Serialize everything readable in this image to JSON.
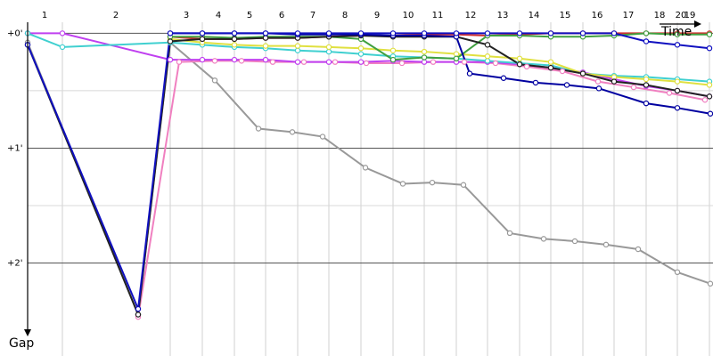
{
  "chart_data": {
    "type": "line",
    "x_label": "Time",
    "y_label": "Gap",
    "xlim": [
      0,
      769
    ],
    "ylim": [
      -0.29,
      2.81
    ],
    "y_inverted": true,
    "xticks": [
      {
        "value": 19,
        "label": "1"
      },
      {
        "value": 99,
        "label": "2"
      },
      {
        "value": 178,
        "label": "3"
      },
      {
        "value": 214,
        "label": "4"
      },
      {
        "value": 249,
        "label": "5"
      },
      {
        "value": 285,
        "label": "6"
      },
      {
        "value": 320,
        "label": "7"
      },
      {
        "value": 356,
        "label": "8"
      },
      {
        "value": 392,
        "label": "9"
      },
      {
        "value": 427,
        "label": "10"
      },
      {
        "value": 460,
        "label": "11"
      },
      {
        "value": 497,
        "label": "12"
      },
      {
        "value": 533,
        "label": "13"
      },
      {
        "value": 568,
        "label": "14"
      },
      {
        "value": 603,
        "label": "15"
      },
      {
        "value": 639,
        "label": "16"
      },
      {
        "value": 674,
        "label": "17"
      },
      {
        "value": 709,
        "label": "18"
      },
      {
        "value": 733,
        "label": "20"
      },
      {
        "value": 743,
        "label": "19"
      }
    ],
    "xgrid": [
      39,
      160,
      196,
      232,
      267,
      303,
      338,
      374,
      410,
      445,
      481,
      516,
      552,
      587,
      623,
      658,
      694,
      729,
      765
    ],
    "yticks": [
      {
        "value": 0,
        "label": "+0'"
      },
      {
        "value": 1,
        "label": "+1'"
      },
      {
        "value": 2,
        "label": "+2'"
      }
    ],
    "ygrid": [
      0.5,
      1.5
    ],
    "series": [
      {
        "color": "#999999",
        "x": [
          0,
          124,
          160,
          210,
          259,
          297,
          331,
          379,
          421,
          454,
          489,
          541,
          579,
          614,
          649,
          685,
          729,
          766
        ],
        "values": [
          0.08,
          2.45,
          0.08,
          0.41,
          0.83,
          0.86,
          0.9,
          1.17,
          1.31,
          1.3,
          1.32,
          1.74,
          1.79,
          1.81,
          1.84,
          1.88,
          2.08,
          2.18
        ]
      },
      {
        "color": "#f080c0",
        "x": [
          124,
          170,
          210,
          240,
          275,
          310,
          345,
          380,
          420,
          455,
          490,
          525,
          560,
          600,
          640,
          680,
          720,
          760
        ],
        "values": [
          2.47,
          0.25,
          0.24,
          0.24,
          0.25,
          0.25,
          0.25,
          0.26,
          0.26,
          0.25,
          0.25,
          0.26,
          0.29,
          0.33,
          0.42,
          0.47,
          0.52,
          0.58
        ]
      },
      {
        "color": "#c040f0",
        "x": [
          0,
          39,
          160,
          196,
          232,
          267,
          303,
          338,
          374,
          410,
          445,
          481,
          516,
          552,
          587,
          623,
          658,
          694,
          729,
          765
        ],
        "values": [
          0,
          0,
          0.23,
          0.23,
          0.23,
          0.23,
          0.25,
          0.25,
          0.25,
          0.24,
          0.25,
          0.25,
          0.25,
          0.27,
          0.3,
          0.34,
          0.4,
          0.46,
          0.5,
          0.55
        ]
      },
      {
        "color": "#40d0d0",
        "x": [
          0,
          39,
          160,
          196,
          232,
          267,
          303,
          338,
          374,
          410,
          445,
          481,
          516,
          552,
          587,
          623,
          658,
          694,
          729,
          765
        ],
        "values": [
          0,
          0.12,
          0.08,
          0.1,
          0.12,
          0.13,
          0.15,
          0.16,
          0.18,
          0.2,
          0.21,
          0.22,
          0.24,
          0.26,
          0.28,
          0.35,
          0.37,
          0.38,
          0.4,
          0.42
        ]
      },
      {
        "color": "#e0e040",
        "x": [
          160,
          196,
          232,
          267,
          303,
          338,
          374,
          410,
          445,
          481,
          516,
          552,
          587,
          623,
          658,
          694,
          729,
          765
        ],
        "values": [
          0.05,
          0.08,
          0.1,
          0.11,
          0.11,
          0.12,
          0.13,
          0.15,
          0.16,
          0.18,
          0.2,
          0.22,
          0.25,
          0.35,
          0.38,
          0.4,
          0.42,
          0.45
        ]
      },
      {
        "color": "#d03030",
        "x": [
          160,
          196,
          232,
          267,
          303,
          338,
          374,
          410,
          445,
          481,
          516,
          552,
          587,
          623,
          658,
          694,
          729,
          765
        ],
        "values": [
          0.03,
          0.05,
          0.05,
          0.04,
          0.04,
          0.03,
          0.02,
          0.02,
          0.01,
          0.01,
          0.02,
          0.01,
          0,
          0,
          0,
          0,
          0,
          0
        ]
      },
      {
        "color": "#40a040",
        "x": [
          160,
          196,
          232,
          267,
          303,
          338,
          374,
          410,
          445,
          481,
          516,
          552,
          587,
          623,
          658,
          694,
          729,
          765
        ],
        "values": [
          0.03,
          0.03,
          0.04,
          0.03,
          0.03,
          0.03,
          0.05,
          0.23,
          0.21,
          0.22,
          0.02,
          0.02,
          0.03,
          0.03,
          0.02,
          0,
          0.01,
          0.01
        ]
      },
      {
        "color": "#222222",
        "x": [
          0,
          124,
          160,
          196,
          232,
          267,
          303,
          338,
          374,
          410,
          445,
          481,
          516,
          552,
          587,
          623,
          658,
          694,
          729,
          765
        ],
        "values": [
          0.1,
          2.45,
          0.07,
          0.05,
          0.05,
          0.04,
          0.04,
          0.03,
          0.02,
          0.03,
          0.03,
          0.03,
          0.1,
          0.27,
          0.3,
          0.35,
          0.42,
          0.45,
          0.5,
          0.55
        ]
      },
      {
        "color": "#0000a0",
        "x": [
          160,
          196,
          232,
          267,
          303,
          338,
          374,
          410,
          445,
          481,
          496,
          534,
          570,
          605,
          641,
          694,
          729,
          766
        ],
        "values": [
          0,
          0,
          0,
          0,
          0.01,
          0.01,
          0.01,
          0.02,
          0.02,
          0.03,
          0.35,
          0.39,
          0.43,
          0.45,
          0.48,
          0.61,
          0.65,
          0.7
        ]
      },
      {
        "color": "#1010c0",
        "x": [
          0,
          124,
          160,
          196,
          232,
          267,
          303,
          338,
          374,
          410,
          445,
          481,
          516,
          552,
          587,
          623,
          658,
          694,
          729,
          765
        ],
        "values": [
          0.1,
          2.4,
          0,
          0,
          0,
          0,
          0,
          0,
          0,
          0,
          0,
          0,
          0,
          0,
          0,
          0,
          0,
          0.07,
          0.1,
          0.13
        ]
      }
    ]
  }
}
